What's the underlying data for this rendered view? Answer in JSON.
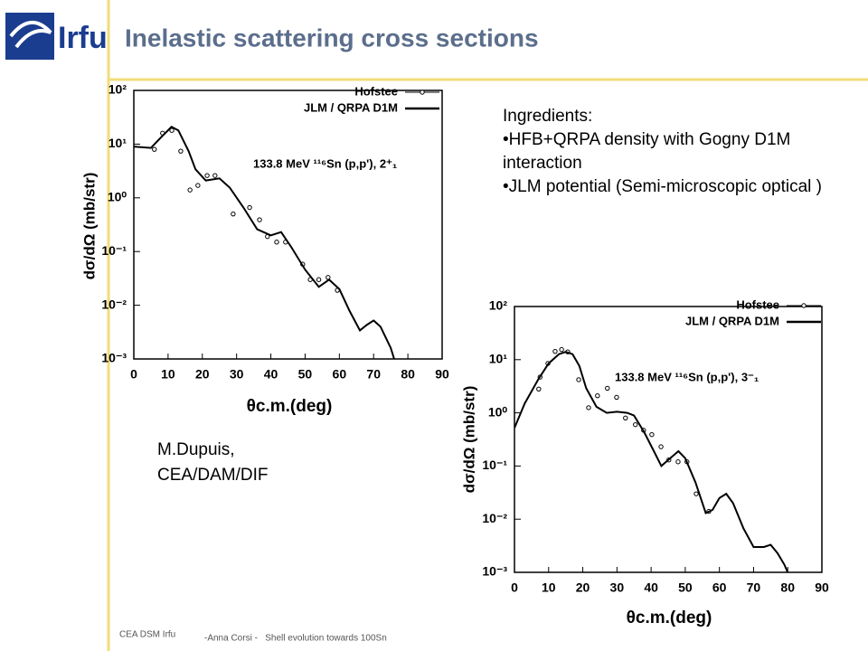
{
  "slide": {
    "logo": "Irfu",
    "title": "Inelastic scattering cross sections",
    "ingredients": {
      "heading": "Ingredients:",
      "items": [
        "•HFB+QRPA density with Gogny D1M interaction",
        "•JLM potential (Semi-microscopic optical )"
      ]
    },
    "author": [
      "M.Dupuis,",
      "CEA/DAM/DIF"
    ],
    "footer": {
      "left": "CEA DSM Irfu",
      "right": "-Anna Corsi -   Shell evolution towards 100Sn"
    }
  },
  "chart_data": [
    {
      "type": "scatter",
      "annotation": "133.8 MeV ¹¹⁶Sn (p,p'), 2⁺₁",
      "xlabel": "θc.m.(deg)",
      "ylabel": "dσ/dΩ (mb/str)",
      "xlim": [
        0,
        90
      ],
      "xticks": [
        0,
        10,
        20,
        30,
        40,
        50,
        60,
        70,
        80,
        90
      ],
      "ylim": [
        0.001,
        100
      ],
      "ylog": true,
      "grid": false,
      "yticks": [
        {
          "value": 100,
          "label": "10²"
        },
        {
          "value": 10,
          "label": "10¹"
        },
        {
          "value": 1,
          "label": "10⁰"
        },
        {
          "value": 0.1,
          "label": "10⁻¹"
        },
        {
          "value": 0.01,
          "label": "10⁻²"
        },
        {
          "value": 0.001,
          "label": "10⁻³"
        }
      ],
      "series": [
        {
          "name": "Hofstee",
          "type": "scatter",
          "color": "#000000",
          "x": [
            6,
            8.4,
            11.1,
            13.7,
            16.4,
            18.7,
            21.4,
            23.7,
            29,
            33.8,
            36.7,
            39,
            41.7,
            44.3,
            49.3,
            51.5,
            54,
            56.7,
            59.4
          ],
          "values": [
            8,
            16,
            18,
            7.4,
            1.4,
            1.7,
            2.6,
            2.6,
            0.5,
            0.66,
            0.39,
            0.19,
            0.15,
            0.15,
            0.058,
            0.03,
            0.03,
            0.033,
            0.019
          ]
        },
        {
          "name": "JLM / QRPA D1M",
          "type": "line",
          "color": "#000000",
          "x": [
            0,
            5,
            8,
            11,
            13,
            16,
            18,
            21,
            25,
            28,
            32,
            36,
            40,
            43,
            46,
            50,
            54,
            57,
            60,
            63,
            66,
            68,
            70,
            72,
            75,
            76
          ],
          "values": [
            9,
            8.5,
            13.5,
            21,
            18,
            7.4,
            3.4,
            2.1,
            2.3,
            1.55,
            0.66,
            0.26,
            0.2,
            0.23,
            0.12,
            0.046,
            0.022,
            0.03,
            0.02,
            0.0078,
            0.0034,
            0.0043,
            0.0052,
            0.004,
            0.0016,
            0.001
          ]
        }
      ]
    },
    {
      "type": "scatter",
      "annotation": "133.8 MeV ¹¹⁶Sn (p,p'), 3⁻₁",
      "xlabel": "θc.m.(deg)",
      "ylabel": "dσ/dΩ (mb/str)",
      "xlim": [
        0,
        90
      ],
      "xticks": [
        0,
        10,
        20,
        30,
        40,
        50,
        60,
        70,
        80,
        90
      ],
      "ylim": [
        0.001,
        100
      ],
      "ylog": true,
      "grid": false,
      "yticks": [
        {
          "value": 100,
          "label": "10²"
        },
        {
          "value": 10,
          "label": "10¹"
        },
        {
          "value": 1,
          "label": "10⁰"
        },
        {
          "value": 0.1,
          "label": "10⁻¹"
        },
        {
          "value": 0.01,
          "label": "10⁻²"
        },
        {
          "value": 0.001,
          "label": "10⁻³"
        }
      ],
      "series": [
        {
          "name": "Hofstee",
          "type": "scatter",
          "color": "#000000",
          "x": [
            7.1,
            7.5,
            9.8,
            11.9,
            13.8,
            15.6,
            18.8,
            21.7,
            24.3,
            27.2,
            29.9,
            32.5,
            35.4,
            37.8,
            40.2,
            42.9,
            45.2,
            47.9,
            50.5,
            53.2,
            56.9
          ],
          "values": [
            2.8,
            4.7,
            8.5,
            14.3,
            15.5,
            14,
            4.2,
            1.25,
            2.1,
            2.9,
            1.96,
            0.8,
            0.6,
            0.47,
            0.39,
            0.23,
            0.13,
            0.12,
            0.12,
            0.03,
            0.014
          ]
        },
        {
          "name": "JLM / QRPA D1M",
          "type": "line",
          "color": "#000000",
          "x": [
            0,
            3,
            7,
            10,
            13,
            15,
            17,
            19,
            21,
            24,
            27,
            30,
            33,
            35,
            38,
            41,
            43,
            45,
            48,
            50,
            53,
            56,
            58,
            60,
            62,
            64,
            67,
            70,
            73,
            75,
            77,
            79,
            80
          ],
          "values": [
            0.52,
            1.5,
            4.3,
            8.5,
            12.7,
            14,
            12.7,
            7.6,
            2.9,
            1.3,
            1,
            1.05,
            1,
            0.89,
            0.43,
            0.18,
            0.1,
            0.13,
            0.19,
            0.14,
            0.049,
            0.013,
            0.015,
            0.025,
            0.03,
            0.02,
            0.0068,
            0.003,
            0.003,
            0.0033,
            0.0023,
            0.0014,
            0.001
          ]
        }
      ]
    }
  ]
}
